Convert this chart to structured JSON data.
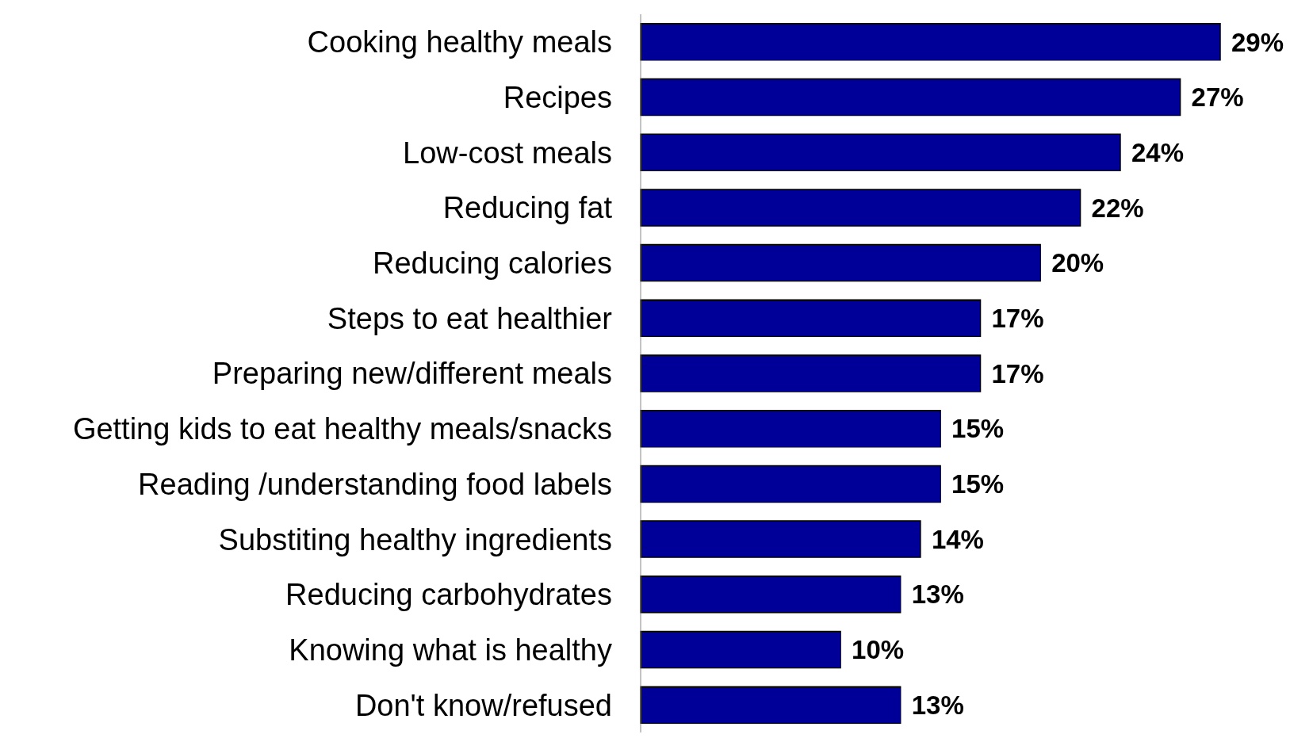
{
  "chart_data": {
    "type": "bar",
    "orientation": "horizontal",
    "categories": [
      "Cooking healthy meals",
      "Recipes",
      "Low-cost meals",
      "Reducing fat",
      "Reducing calories",
      "Steps to eat healthier",
      "Preparing new/different meals",
      "Getting kids to eat healthy meals/snacks",
      "Reading /understanding food labels",
      "Substiting healthy ingredients",
      "Reducing carbohydrates",
      "Knowing what is healthy",
      "Don't know/refused"
    ],
    "values": [
      29,
      27,
      24,
      22,
      20,
      17,
      17,
      15,
      15,
      14,
      13,
      10,
      13
    ],
    "value_labels": [
      "29%",
      "27%",
      "24%",
      "22%",
      "20%",
      "17%",
      "17%",
      "15%",
      "15%",
      "14%",
      "13%",
      "10%",
      "13%"
    ],
    "color": "#000099"
  }
}
